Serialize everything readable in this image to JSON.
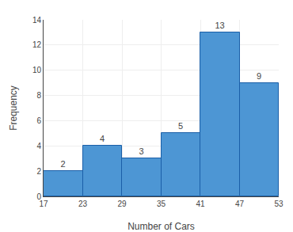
{
  "chart_data": {
    "type": "histogram",
    "xlabel": "Number of Cars",
    "ylabel": "Frequency",
    "bins": [
      17,
      23,
      29,
      35,
      41,
      47,
      53
    ],
    "values": [
      2,
      4,
      3,
      5,
      13,
      9
    ],
    "color": "#4d96d4",
    "xlim": [
      17,
      53
    ],
    "xticks": [
      17,
      23,
      29,
      35,
      41,
      47,
      53
    ],
    "ylim": [
      0,
      14
    ],
    "yticks": [
      0,
      2,
      4,
      6,
      8,
      10,
      12,
      14
    ],
    "grid": true,
    "data_labels": true
  }
}
